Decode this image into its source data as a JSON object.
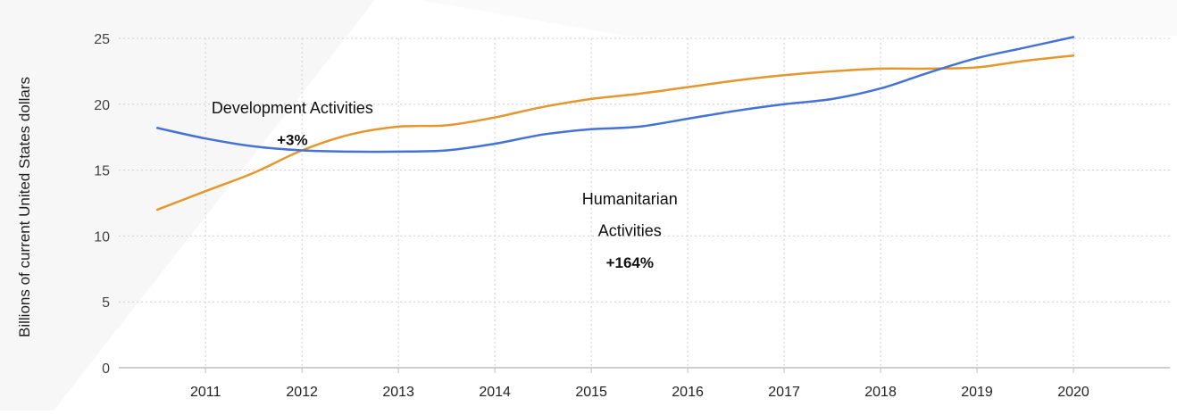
{
  "chart_data": {
    "type": "line",
    "ylabel": "Billions of current United States dollars",
    "xlabel": "",
    "x": [
      2010.5,
      2011,
      2011.5,
      2012,
      2012.5,
      2013,
      2013.5,
      2014,
      2014.5,
      2015,
      2015.5,
      2016,
      2016.5,
      2017,
      2017.5,
      2018,
      2018.5,
      2019,
      2019.5,
      2020
    ],
    "x_ticks": [
      "2011",
      "2012",
      "2013",
      "2014",
      "2015",
      "2016",
      "2017",
      "2018",
      "2019",
      "2020"
    ],
    "y_ticks": [
      "0",
      "5",
      "10",
      "15",
      "20",
      "25"
    ],
    "xlim": [
      2010.1,
      2021
    ],
    "ylim": [
      0,
      25
    ],
    "grid": true,
    "series": [
      {
        "name": "Development Activities",
        "color": "#4472D6",
        "values": [
          18.2,
          17.4,
          16.8,
          16.5,
          16.4,
          16.4,
          16.5,
          17.0,
          17.7,
          18.1,
          18.3,
          18.9,
          19.5,
          20.0,
          20.4,
          21.2,
          22.4,
          23.5,
          24.3,
          25.1
        ]
      },
      {
        "name": "Humanitarian Activities",
        "color": "#E5962C",
        "values": [
          12.0,
          13.4,
          14.8,
          16.5,
          17.7,
          18.3,
          18.4,
          19.0,
          19.8,
          20.4,
          20.8,
          21.3,
          21.8,
          22.2,
          22.5,
          22.7,
          22.7,
          22.8,
          23.3,
          23.7
        ]
      }
    ],
    "annotations": [
      {
        "id": "dev-name",
        "text": "Development Activities",
        "x": 2011.9,
        "y": 19.7,
        "bold": false
      },
      {
        "id": "dev-change",
        "text": "+3%",
        "x": 2011.9,
        "y": 17.3,
        "bold": true
      },
      {
        "id": "hum-name-1",
        "text": "Humanitarian",
        "x": 2015.4,
        "y": 12.8,
        "bold": false
      },
      {
        "id": "hum-name-2",
        "text": "Activities",
        "x": 2015.4,
        "y": 10.4,
        "bold": false
      },
      {
        "id": "hum-change",
        "text": "+164%",
        "x": 2015.4,
        "y": 8.0,
        "bold": true
      }
    ]
  }
}
